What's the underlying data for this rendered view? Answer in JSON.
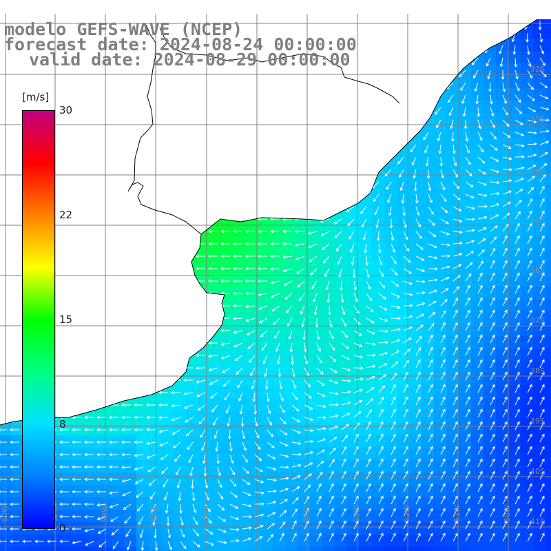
{
  "title": {
    "line1": "modelo GEFS-WAVE (NCEP)",
    "line2": "forecast date: 2024-08-24 00:00:00",
    "line3": "valid date: 2024-08-29 00:00:00"
  },
  "colorbar": {
    "unit": "[m/s]",
    "ticks": [
      "30",
      "22",
      "15",
      "8",
      "0"
    ],
    "tick_values": [
      30,
      22,
      15,
      8,
      0
    ],
    "range": [
      0,
      30
    ],
    "colors": [
      "#0000ff",
      "#0080ff",
      "#00e0ff",
      "#00ff80",
      "#00ff00",
      "#ffff00",
      "#ff8000",
      "#ff0000",
      "#c00080"
    ]
  },
  "map": {
    "field": "wind speed and direction",
    "land_color": "#ffffff",
    "grid_color": "#808080",
    "lat_labels": [
      "32S",
      "33S",
      "34S",
      "35S",
      "36S",
      "37S",
      "38S",
      "39S",
      "40S",
      "41S"
    ],
    "lon_labels": [
      "60W",
      "59W",
      "58W",
      "57W",
      "56W",
      "55W",
      "54W",
      "53W",
      "52W",
      "51W",
      "50W"
    ]
  }
}
